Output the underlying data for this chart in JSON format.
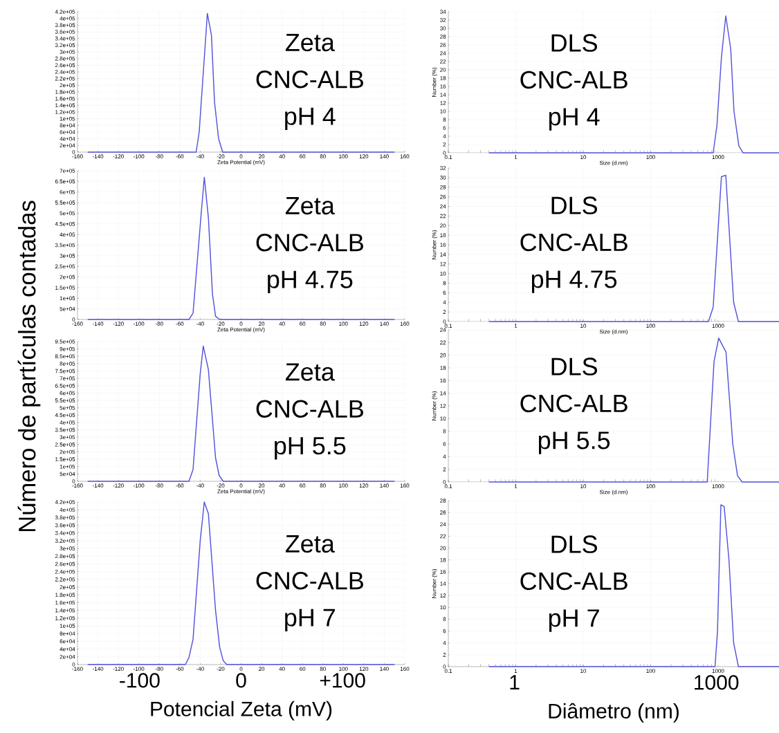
{
  "chart_data": [
    {
      "type": "line",
      "xlim": [
        -160,
        160
      ],
      "ylim": [
        0,
        420000
      ],
      "grid": true,
      "xlabel": "Zeta Potential (mV)",
      "ylabel": "Número de partículas contadas",
      "xticks": [
        -160,
        -140,
        -120,
        -100,
        -80,
        -60,
        -40,
        -20,
        0,
        20,
        40,
        60,
        80,
        100,
        120,
        140,
        160
      ],
      "yticks": [
        0,
        {
          "value": 20000,
          "label": "2e+04"
        },
        {
          "value": 40000,
          "label": "4e+04"
        },
        {
          "value": 60000,
          "label": "6e+04"
        },
        {
          "value": 80000,
          "label": "8e+04"
        },
        {
          "value": 100000,
          "label": "1e+05"
        },
        {
          "value": 120000,
          "label": "1.2e+05"
        },
        {
          "value": 140000,
          "label": "1.4e+05"
        },
        {
          "value": 160000,
          "label": "1.6e+05"
        },
        {
          "value": 180000,
          "label": "1.8e+05"
        },
        {
          "value": 200000,
          "label": "2e+05"
        },
        {
          "value": 220000,
          "label": "2.2e+05"
        },
        {
          "value": 240000,
          "label": "2.4e+05"
        },
        {
          "value": 260000,
          "label": "2.6e+05"
        },
        {
          "value": 280000,
          "label": "2.8e+05"
        },
        {
          "value": 300000,
          "label": "3e+05"
        },
        {
          "value": 320000,
          "label": "3.2e+05"
        },
        {
          "value": 340000,
          "label": "3.4e+05"
        },
        {
          "value": 360000,
          "label": "3.6e+05"
        },
        {
          "value": 380000,
          "label": "3.8e+05"
        },
        {
          "value": 400000,
          "label": "4e+05"
        },
        {
          "value": 420000,
          "label": "4.2e+05"
        }
      ],
      "x": [
        -150,
        -44,
        -41,
        -33,
        -29,
        -26,
        -22,
        -18,
        150
      ],
      "series": [
        {
          "color": "#5555dd",
          "values": [
            0,
            0,
            60000,
            415000,
            350000,
            150000,
            40000,
            0,
            0
          ]
        }
      ],
      "annotations": [
        "Zeta",
        "CNC-ALB",
        "pH 4"
      ]
    },
    {
      "type": "line",
      "log": "x",
      "xlim": [
        0.1,
        8000
      ],
      "ylim": [
        0,
        34
      ],
      "grid": true,
      "xlabel": "Size (d.nm)",
      "ylabel": "Number (%)",
      "xticks": [
        0.1,
        1,
        10,
        100,
        1000
      ],
      "yticks": [
        0,
        2,
        4,
        6,
        8,
        10,
        12,
        14,
        16,
        18,
        20,
        22,
        24,
        26,
        28,
        30,
        32,
        34
      ],
      "x": [
        0.4,
        845,
        960,
        1120,
        1300,
        1540,
        1720,
        2030,
        2350,
        8000
      ],
      "series": [
        {
          "color": "#5555dd",
          "values": [
            0,
            0,
            6.5,
            23,
            33,
            25,
            10,
            1.7,
            0,
            0
          ]
        }
      ],
      "annotations": [
        "DLS",
        "CNC-ALB",
        "pH 4"
      ]
    },
    {
      "type": "line",
      "xlim": [
        -160,
        160
      ],
      "ylim": [
        0,
        700000
      ],
      "grid": true,
      "xlabel": "Zeta Potential (mV)",
      "xticks": [
        -160,
        -140,
        -120,
        -100,
        -80,
        -60,
        -40,
        -20,
        0,
        20,
        40,
        60,
        80,
        100,
        120,
        140,
        160
      ],
      "yticks": [
        0,
        {
          "value": 50000,
          "label": "5e+04"
        },
        {
          "value": 100000,
          "label": "1e+05"
        },
        {
          "value": 150000,
          "label": "1.5e+05"
        },
        {
          "value": 200000,
          "label": "2e+05"
        },
        {
          "value": 250000,
          "label": "2.5e+05"
        },
        {
          "value": 300000,
          "label": "3e+05"
        },
        {
          "value": 350000,
          "label": "3.5e+05"
        },
        {
          "value": 400000,
          "label": "4e+05"
        },
        {
          "value": 450000,
          "label": "4.5e+05"
        },
        {
          "value": 500000,
          "label": "5e+05"
        },
        {
          "value": 550000,
          "label": "5.5e+05"
        },
        {
          "value": 600000,
          "label": "6e+05"
        },
        {
          "value": 650000,
          "label": "6.5e+05"
        },
        {
          "value": 700000,
          "label": "7e+05"
        }
      ],
      "x": [
        -150,
        -51,
        -47,
        -39,
        -36,
        -32,
        -28,
        -25,
        -21,
        150
      ],
      "series": [
        {
          "color": "#5555dd",
          "values": [
            0,
            0,
            30000,
            500000,
            670000,
            480000,
            120000,
            15000,
            0,
            0
          ]
        }
      ],
      "annotations": [
        "Zeta",
        "CNC-ALB",
        "pH 4.75"
      ]
    },
    {
      "type": "line",
      "log": "x",
      "xlim": [
        0.1,
        8000
      ],
      "ylim": [
        0,
        32
      ],
      "grid": true,
      "xlabel": "Size (d.nm)",
      "ylabel": "Number (%)",
      "xticks": [
        0.1,
        1,
        10,
        100,
        1000
      ],
      "yticks": [
        0,
        2,
        4,
        6,
        8,
        10,
        12,
        14,
        16,
        18,
        20,
        22,
        24,
        26,
        28,
        30,
        32
      ],
      "x": [
        0.4,
        720,
        845,
        1120,
        1300,
        1700,
        2000,
        8000
      ],
      "series": [
        {
          "color": "#5555dd",
          "values": [
            0,
            0,
            3,
            30.2,
            30.5,
            4,
            0,
            0
          ]
        }
      ],
      "annotations": [
        "DLS",
        "CNC-ALB",
        "pH 4.75"
      ]
    },
    {
      "type": "line",
      "xlim": [
        -160,
        160
      ],
      "ylim": [
        0,
        950000
      ],
      "grid": true,
      "xlabel": "Zeta Potential (mV)",
      "xticks": [
        -160,
        -140,
        -120,
        -100,
        -80,
        -60,
        -40,
        -20,
        0,
        20,
        40,
        60,
        80,
        100,
        120,
        140,
        160
      ],
      "yticks": [
        0,
        {
          "value": 50000,
          "label": "5e+04"
        },
        {
          "value": 100000,
          "label": "1e+05"
        },
        {
          "value": 150000,
          "label": "1.5e+05"
        },
        {
          "value": 200000,
          "label": "2e+05"
        },
        {
          "value": 250000,
          "label": "2.5e+05"
        },
        {
          "value": 300000,
          "label": "3e+05"
        },
        {
          "value": 350000,
          "label": "3.5e+05"
        },
        {
          "value": 400000,
          "label": "4e+05"
        },
        {
          "value": 450000,
          "label": "4.5e+05"
        },
        {
          "value": 500000,
          "label": "5e+05"
        },
        {
          "value": 550000,
          "label": "5.5e+05"
        },
        {
          "value": 600000,
          "label": "6e+05"
        },
        {
          "value": 650000,
          "label": "6.5e+05"
        },
        {
          "value": 700000,
          "label": "7e+05"
        },
        {
          "value": 750000,
          "label": "7.5e+05"
        },
        {
          "value": 800000,
          "label": "8e+05"
        },
        {
          "value": 850000,
          "label": "8.5e+05"
        },
        {
          "value": 900000,
          "label": "9e+05"
        },
        {
          "value": 950000,
          "label": "9.5e+05"
        }
      ],
      "x": [
        -150,
        -51,
        -47,
        -40,
        -37,
        -32,
        -25,
        -21.5,
        -17.5,
        150
      ],
      "series": [
        {
          "color": "#5555dd",
          "values": [
            0,
            0,
            80000,
            730000,
            920000,
            760000,
            160000,
            40000,
            0,
            0
          ]
        }
      ],
      "annotations": [
        "Zeta",
        "CNC-ALB",
        "pH 5.5"
      ]
    },
    {
      "type": "line",
      "log": "x",
      "xlim": [
        0.1,
        8000
      ],
      "ylim": [
        0,
        24
      ],
      "grid": true,
      "xlabel": "Size (d.nm)",
      "ylabel": "Number (%)",
      "xticks": [
        0.1,
        1,
        10,
        100,
        1000
      ],
      "yticks": [
        0,
        2,
        4,
        6,
        8,
        10,
        12,
        14,
        16,
        18,
        20,
        22,
        24
      ],
      "x": [
        0.4,
        690,
        870,
        1020,
        1310,
        1650,
        1940,
        2270,
        8000
      ],
      "series": [
        {
          "color": "#5555dd",
          "values": [
            0,
            0,
            19,
            22.7,
            20.5,
            6,
            1,
            0,
            0
          ]
        }
      ],
      "annotations": [
        "DLS",
        "CNC-ALB",
        "pH 5.5"
      ]
    },
    {
      "type": "line",
      "xlim": [
        -160,
        160
      ],
      "ylim": [
        0,
        420000
      ],
      "grid": true,
      "xlabel": "Potencial Zeta (mV)",
      "xticks": [
        -160,
        -140,
        -120,
        -100,
        -80,
        -60,
        -40,
        -20,
        0,
        20,
        40,
        60,
        80,
        100,
        120,
        140,
        160
      ],
      "yticks": [
        0,
        {
          "value": 20000,
          "label": "2e+04"
        },
        {
          "value": 40000,
          "label": "4e+04"
        },
        {
          "value": 60000,
          "label": "6e+04"
        },
        {
          "value": 80000,
          "label": "8e+04"
        },
        {
          "value": 100000,
          "label": "1e+05"
        },
        {
          "value": 120000,
          "label": "1.2e+05"
        },
        {
          "value": 140000,
          "label": "1.4e+05"
        },
        {
          "value": 160000,
          "label": "1.6e+05"
        },
        {
          "value": 180000,
          "label": "1.8e+05"
        },
        {
          "value": 200000,
          "label": "2e+05"
        },
        {
          "value": 220000,
          "label": "2.2e+05"
        },
        {
          "value": 240000,
          "label": "2.4e+05"
        },
        {
          "value": 260000,
          "label": "2.6e+05"
        },
        {
          "value": 280000,
          "label": "2.8e+05"
        },
        {
          "value": 300000,
          "label": "3e+05"
        },
        {
          "value": 320000,
          "label": "3.2e+05"
        },
        {
          "value": 340000,
          "label": "3.4e+05"
        },
        {
          "value": 360000,
          "label": "3.6e+05"
        },
        {
          "value": 380000,
          "label": "3.8e+05"
        },
        {
          "value": 400000,
          "label": "4e+05"
        },
        {
          "value": 420000,
          "label": "4.2e+05"
        }
      ],
      "x": [
        -150,
        -54.5,
        -51,
        -47,
        -40,
        -36,
        -32,
        -25,
        -21,
        -17.5,
        -14,
        150
      ],
      "series": [
        {
          "color": "#5555dd",
          "values": [
            0,
            0,
            18000,
            65000,
            320000,
            420000,
            390000,
            140000,
            45000,
            10000,
            0,
            0
          ]
        }
      ],
      "annotations": [
        "Zeta",
        "CNC-ALB",
        "pH 7",
        "-100",
        "0",
        "+100"
      ]
    },
    {
      "type": "line",
      "log": "x",
      "xlim": [
        0.1,
        8000
      ],
      "ylim": [
        0,
        28
      ],
      "grid": true,
      "xlabel": "Diâmetro (nm)",
      "ylabel": "Number (%)",
      "xticks": [
        0.1,
        1,
        10,
        100,
        1000
      ],
      "yticks": [
        0,
        2,
        4,
        6,
        8,
        10,
        12,
        14,
        16,
        18,
        20,
        22,
        24,
        26,
        28
      ],
      "x": [
        0.4,
        900,
        980,
        1100,
        1230,
        1450,
        1700,
        2000,
        8000
      ],
      "series": [
        {
          "color": "#5555dd",
          "values": [
            0,
            0,
            6,
            27.3,
            27,
            18,
            4,
            0,
            0
          ]
        }
      ],
      "annotations": [
        "DLS",
        "CNC-ALB",
        "pH 7",
        "1",
        "1000"
      ]
    }
  ]
}
